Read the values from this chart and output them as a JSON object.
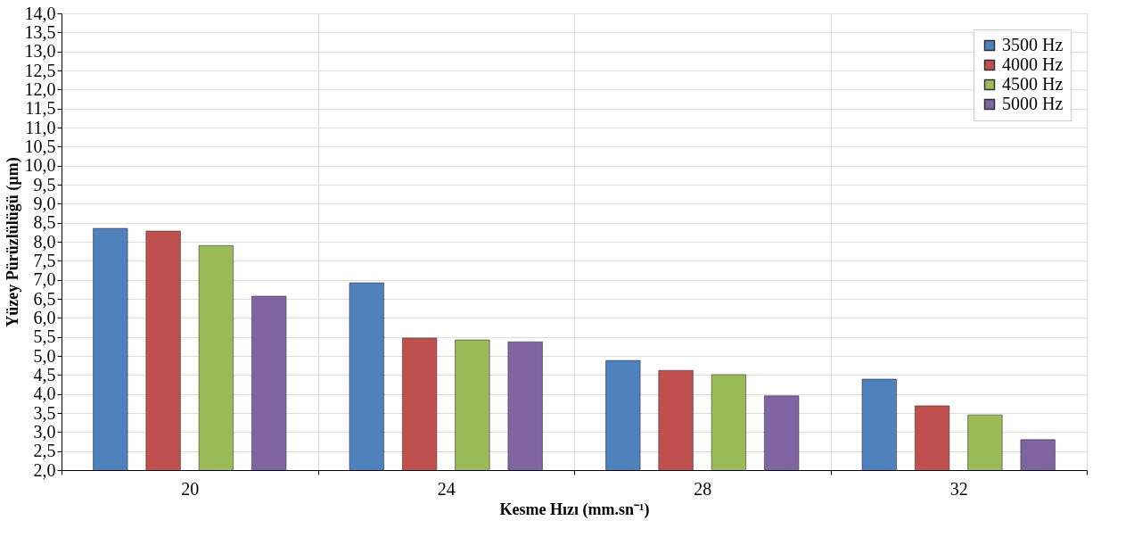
{
  "chart_data": {
    "type": "bar",
    "xlabel": "Kesme Hızı (mm.sn⁻¹)",
    "ylabel": "Yüzey Pürüzlülüğü (µm)",
    "categories": [
      "20",
      "24",
      "28",
      "32"
    ],
    "series": [
      {
        "name": "3500 Hz",
        "color": "#4f81bd",
        "values": [
          8.35,
          6.92,
          4.88,
          4.39
        ]
      },
      {
        "name": "4000 Hz",
        "color": "#c0504d",
        "values": [
          8.28,
          5.47,
          4.62,
          3.69
        ]
      },
      {
        "name": "4500 Hz",
        "color": "#9bbb59",
        "values": [
          7.9,
          5.42,
          4.51,
          3.45
        ]
      },
      {
        "name": "5000 Hz",
        "color": "#8064a2",
        "values": [
          6.57,
          5.37,
          3.95,
          2.8
        ]
      }
    ],
    "ylim": [
      2.0,
      14.0
    ],
    "yticks": [
      {
        "value": 2.0,
        "label": "2,0"
      },
      {
        "value": 2.5,
        "label": "2,5"
      },
      {
        "value": 3.0,
        "label": "3,0"
      },
      {
        "value": 3.5,
        "label": "3,5"
      },
      {
        "value": 4.0,
        "label": "4,0"
      },
      {
        "value": 4.5,
        "label": "4,5"
      },
      {
        "value": 5.0,
        "label": "5,0"
      },
      {
        "value": 5.5,
        "label": "5,5"
      },
      {
        "value": 6.0,
        "label": "6,0"
      },
      {
        "value": 6.5,
        "label": "6,5"
      },
      {
        "value": 7.0,
        "label": "7,0"
      },
      {
        "value": 7.5,
        "label": "7,5"
      },
      {
        "value": 8.0,
        "label": "8,0"
      },
      {
        "value": 8.5,
        "label": "8,5"
      },
      {
        "value": 9.0,
        "label": "9,0"
      },
      {
        "value": 9.5,
        "label": "9,5"
      },
      {
        "value": 10.0,
        "label": "10,0"
      },
      {
        "value": 10.5,
        "label": "10,5"
      },
      {
        "value": 11.0,
        "label": "11,0"
      },
      {
        "value": 11.5,
        "label": "11,5"
      },
      {
        "value": 12.0,
        "label": "12,0"
      },
      {
        "value": 12.5,
        "label": "12,5"
      },
      {
        "value": 13.0,
        "label": "13,0"
      },
      {
        "value": 13.5,
        "label": "13,5"
      },
      {
        "value": 14.0,
        "label": "14,0"
      }
    ],
    "grid": true,
    "legend": "top right"
  }
}
